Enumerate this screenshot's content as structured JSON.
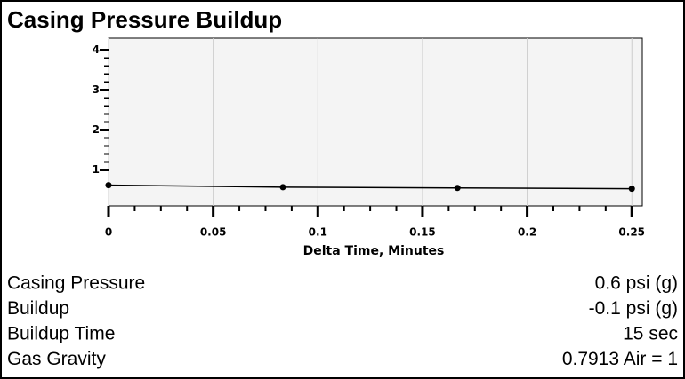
{
  "title": "Casing Pressure Buildup",
  "chart_data": {
    "type": "line",
    "xlabel": "Delta Time, Minutes",
    "x": [
      0,
      0.0833,
      0.1667,
      0.25
    ],
    "series": [
      {
        "name": "Casing Pressure",
        "color": "#000000",
        "values": [
          0.62,
          0.57,
          0.55,
          0.53
        ]
      }
    ],
    "xlim": [
      0,
      0.255
    ],
    "ylim": [
      0.1,
      4.3
    ],
    "xticks": [
      0,
      0.05,
      0.1,
      0.15,
      0.2,
      0.25
    ],
    "yticks": [
      1,
      2,
      3,
      4
    ],
    "grid": true
  },
  "rows": [
    [
      "Casing Pressure",
      "0.6 psi (g)"
    ],
    [
      "Buildup",
      "-0.1 psi (g)"
    ],
    [
      "Buildup Time",
      "15 sec"
    ],
    [
      "Gas Gravity",
      "0.7913 Air = 1"
    ]
  ]
}
